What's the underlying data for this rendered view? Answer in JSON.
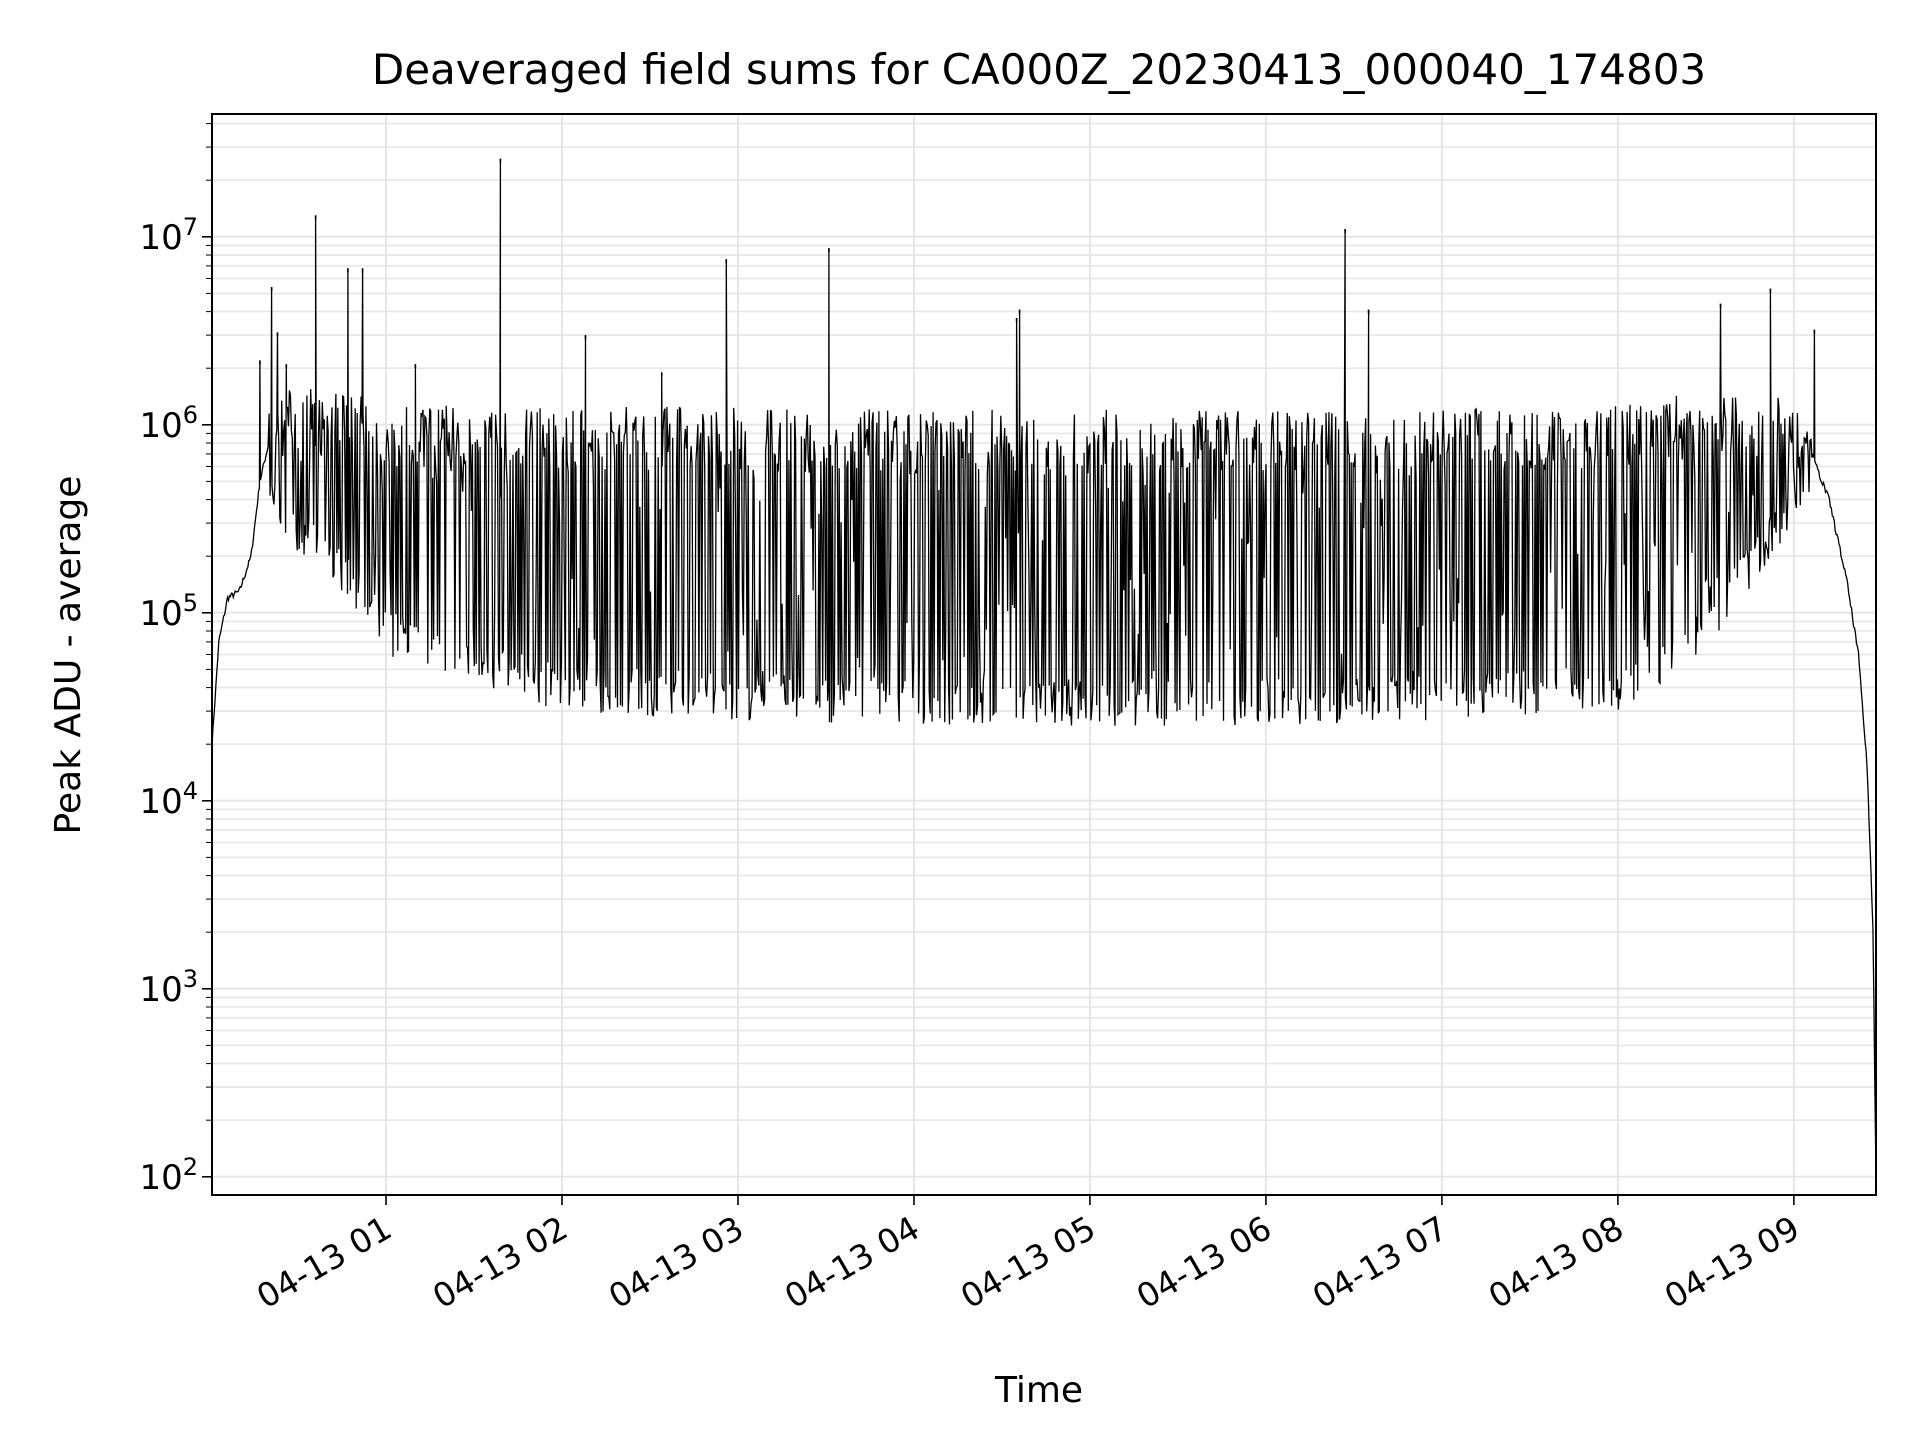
{
  "chart_data": {
    "type": "line",
    "title": "Deaveraged field sums for CA000Z_20230413_000040_174803",
    "xlabel": "Time",
    "ylabel": "Peak ADU - average",
    "yscale": "log",
    "ylim": [
      80,
      45000000
    ],
    "xlim": [
      "2023-04-13 00:00:40",
      "2023-04-13 09:28:00"
    ],
    "grid": "on",
    "line_color": "#000000",
    "grid_color": "#e6e6e6",
    "x_ticks": [
      {
        "t": "2023-04-13 01:00",
        "label": "04-13 01"
      },
      {
        "t": "2023-04-13 02:00",
        "label": "04-13 02"
      },
      {
        "t": "2023-04-13 03:00",
        "label": "04-13 03"
      },
      {
        "t": "2023-04-13 04:00",
        "label": "04-13 04"
      },
      {
        "t": "2023-04-13 05:00",
        "label": "04-13 05"
      },
      {
        "t": "2023-04-13 06:00",
        "label": "04-13 06"
      },
      {
        "t": "2023-04-13 07:00",
        "label": "04-13 07"
      },
      {
        "t": "2023-04-13 08:00",
        "label": "04-13 08"
      },
      {
        "t": "2023-04-13 09:00",
        "label": "04-13 09"
      }
    ],
    "y_ticks": [
      {
        "value": 100,
        "exp": "2"
      },
      {
        "value": 1000,
        "exp": "3"
      },
      {
        "value": 10000,
        "exp": "4"
      },
      {
        "value": 100000,
        "exp": "5"
      },
      {
        "value": 1000000,
        "exp": "6"
      },
      {
        "value": 10000000,
        "exp": "7"
      }
    ],
    "y_tick_base": "10",
    "baseline": {
      "x": [
        "2023-04-13 00:00:40",
        "2023-04-13 00:03",
        "2023-04-13 00:06",
        "2023-04-13 00:10",
        "2023-04-13 00:14",
        "2023-04-13 00:17",
        "2023-04-13 00:20",
        "2023-04-13 00:30",
        "2023-04-13 00:45",
        "2023-04-13 01:00",
        "2023-04-13 01:30",
        "2023-04-13 02:00",
        "2023-04-13 03:00",
        "2023-04-13 04:00",
        "2023-04-13 05:00",
        "2023-04-13 06:00",
        "2023-04-13 07:00",
        "2023-04-13 08:00",
        "2023-04-13 08:30",
        "2023-04-13 09:00",
        "2023-04-13 09:06",
        "2023-04-13 09:12",
        "2023-04-13 09:18",
        "2023-04-13 09:22",
        "2023-04-13 09:25",
        "2023-04-13 09:27",
        "2023-04-13 09:28"
      ],
      "y": [
        20000,
        70000,
        120000,
        130000,
        200000,
        500000,
        800000,
        900000,
        950000,
        900000,
        750000,
        600000,
        520000,
        500000,
        480000,
        500000,
        550000,
        700000,
        900000,
        800000,
        700000,
        400000,
        150000,
        60000,
        15000,
        2000,
        100
      ]
    },
    "envelope": {
      "x": [
        "2023-04-13 00:20",
        "2023-04-13 00:40",
        "2023-04-13 01:00",
        "2023-04-13 01:30",
        "2023-04-13 02:00",
        "2023-04-13 03:00",
        "2023-04-13 04:00",
        "2023-04-13 05:00",
        "2023-04-13 06:00",
        "2023-04-13 07:00",
        "2023-04-13 08:00",
        "2023-04-13 08:30",
        "2023-04-13 09:00",
        "2023-04-13 09:06"
      ],
      "upper": [
        1500000,
        1600000,
        1300000,
        1250000,
        1250000,
        1250000,
        1200000,
        1200000,
        1200000,
        1200000,
        1300000,
        1500000,
        1400000,
        900000
      ],
      "lower": [
        300000,
        150000,
        60000,
        40000,
        30000,
        27000,
        25000,
        25000,
        25000,
        27000,
        30000,
        60000,
        300000,
        500000
      ]
    },
    "spikes": [
      {
        "x": "2023-04-13 00:17",
        "y": 2200000
      },
      {
        "x": "2023-04-13 00:21",
        "y": 5400000
      },
      {
        "x": "2023-04-13 00:23",
        "y": 3100000
      },
      {
        "x": "2023-04-13 00:26",
        "y": 2100000
      },
      {
        "x": "2023-04-13 00:36",
        "y": 13000000
      },
      {
        "x": "2023-04-13 00:47",
        "y": 6800000
      },
      {
        "x": "2023-04-13 00:52",
        "y": 6800000
      },
      {
        "x": "2023-04-13 01:10",
        "y": 2100000
      },
      {
        "x": "2023-04-13 01:39",
        "y": 26000000
      },
      {
        "x": "2023-04-13 02:08",
        "y": 3000000
      },
      {
        "x": "2023-04-13 02:34",
        "y": 1900000
      },
      {
        "x": "2023-04-13 02:56",
        "y": 7600000
      },
      {
        "x": "2023-04-13 03:31",
        "y": 8700000
      },
      {
        "x": "2023-04-13 04:35",
        "y": 3700000
      },
      {
        "x": "2023-04-13 04:36",
        "y": 4100000
      },
      {
        "x": "2023-04-13 06:27",
        "y": 11000000
      },
      {
        "x": "2023-04-13 06:35",
        "y": 4100000
      },
      {
        "x": "2023-04-13 08:35",
        "y": 4400000
      },
      {
        "x": "2023-04-13 08:52",
        "y": 5300000
      },
      {
        "x": "2023-04-13 09:07",
        "y": 3200000
      }
    ]
  }
}
